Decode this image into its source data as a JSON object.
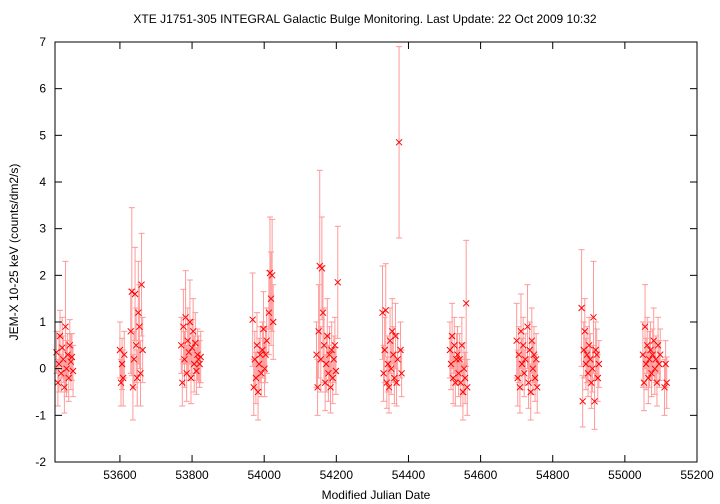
{
  "chart_data": {
    "type": "scatter",
    "title": "XTE J1751-305   INTEGRAL Galactic Bulge Monitoring.  Last Update: 22 Oct 2009 10:32",
    "xlabel": "Modified Julian Date",
    "ylabel": "JEM-X 10-25 keV (counts/dm2/s)",
    "xlim": [
      53420,
      55200
    ],
    "ylim": [
      -2,
      7
    ],
    "xticks": [
      53600,
      53800,
      54000,
      54200,
      54400,
      54600,
      54800,
      55000,
      55200
    ],
    "yticks": [
      -2,
      -1,
      0,
      1,
      2,
      3,
      4,
      5,
      6,
      7
    ],
    "grid": false,
    "legend": "none",
    "colors": {
      "series": "#ff0000",
      "errorbar": "#ff9999",
      "axis": "#000000"
    },
    "series": [
      {
        "marker": "x",
        "points": [
          {
            "x": 53424,
            "y": 0.35,
            "err": 0.45
          },
          {
            "x": 53428,
            "y": -0.3,
            "err": 0.5
          },
          {
            "x": 53431,
            "y": 0.1,
            "err": 0.6
          },
          {
            "x": 53434,
            "y": 0.7,
            "err": 0.55
          },
          {
            "x": 53437,
            "y": -0.1,
            "err": 0.4
          },
          {
            "x": 53440,
            "y": 0.45,
            "err": 0.65
          },
          {
            "x": 53443,
            "y": 0.2,
            "err": 0.5
          },
          {
            "x": 53446,
            "y": -0.4,
            "err": 0.55
          },
          {
            "x": 53449,
            "y": 0.9,
            "err": 1.4
          },
          {
            "x": 53452,
            "y": 0.0,
            "err": 0.6
          },
          {
            "x": 53455,
            "y": 0.3,
            "err": 0.45
          },
          {
            "x": 53458,
            "y": -0.2,
            "err": 0.5
          },
          {
            "x": 53461,
            "y": 0.5,
            "err": 0.55
          },
          {
            "x": 53464,
            "y": 0.15,
            "err": 0.6
          },
          {
            "x": 53467,
            "y": 0.25,
            "err": 0.5
          },
          {
            "x": 53470,
            "y": -0.05,
            "err": 0.55
          },
          {
            "x": 53600,
            "y": 0.4,
            "err": 0.6
          },
          {
            "x": 53603,
            "y": -0.3,
            "err": 0.5
          },
          {
            "x": 53606,
            "y": 0.1,
            "err": 0.55
          },
          {
            "x": 53609,
            "y": -0.2,
            "err": 0.6
          },
          {
            "x": 53612,
            "y": 0.3,
            "err": 0.5
          },
          {
            "x": 53630,
            "y": 0.8,
            "err": 0.9
          },
          {
            "x": 53633,
            "y": 1.65,
            "err": 1.8
          },
          {
            "x": 53636,
            "y": -0.4,
            "err": 0.7
          },
          {
            "x": 53639,
            "y": 0.2,
            "err": 0.6
          },
          {
            "x": 53642,
            "y": 1.6,
            "err": 1.0
          },
          {
            "x": 53645,
            "y": 0.5,
            "err": 0.8
          },
          {
            "x": 53648,
            "y": -0.2,
            "err": 0.6
          },
          {
            "x": 53651,
            "y": 1.2,
            "err": 1.1
          },
          {
            "x": 53654,
            "y": 0.9,
            "err": 0.9
          },
          {
            "x": 53657,
            "y": -0.1,
            "err": 0.7
          },
          {
            "x": 53660,
            "y": 1.8,
            "err": 1.1
          },
          {
            "x": 53663,
            "y": 0.4,
            "err": 0.7
          },
          {
            "x": 53770,
            "y": 0.5,
            "err": 0.6
          },
          {
            "x": 53773,
            "y": -0.3,
            "err": 0.5
          },
          {
            "x": 53776,
            "y": 0.9,
            "err": 0.8
          },
          {
            "x": 53779,
            "y": 0.2,
            "err": 0.6
          },
          {
            "x": 53782,
            "y": 1.1,
            "err": 1.0
          },
          {
            "x": 53785,
            "y": -0.1,
            "err": 0.6
          },
          {
            "x": 53788,
            "y": 0.6,
            "err": 0.7
          },
          {
            "x": 53791,
            "y": 0.35,
            "err": 0.6
          },
          {
            "x": 53794,
            "y": 1.0,
            "err": 0.9
          },
          {
            "x": 53797,
            "y": -0.2,
            "err": 0.55
          },
          {
            "x": 53800,
            "y": 0.45,
            "err": 0.6
          },
          {
            "x": 53803,
            "y": 0.8,
            "err": 0.7
          },
          {
            "x": 53806,
            "y": 0.1,
            "err": 0.6
          },
          {
            "x": 53809,
            "y": 0.55,
            "err": 0.65
          },
          {
            "x": 53812,
            "y": -0.05,
            "err": 0.5
          },
          {
            "x": 53815,
            "y": 0.3,
            "err": 0.55
          },
          {
            "x": 53818,
            "y": 0.2,
            "err": 0.5
          },
          {
            "x": 53821,
            "y": 0.1,
            "err": 0.5
          },
          {
            "x": 53824,
            "y": 0.25,
            "err": 0.55
          },
          {
            "x": 53968,
            "y": 1.05,
            "err": 1.0
          },
          {
            "x": 53971,
            "y": -0.4,
            "err": 0.6
          },
          {
            "x": 53974,
            "y": 0.2,
            "err": 0.6
          },
          {
            "x": 53977,
            "y": -0.2,
            "err": 0.55
          },
          {
            "x": 53980,
            "y": 0.5,
            "err": 0.7
          },
          {
            "x": 53983,
            "y": -0.5,
            "err": 0.6
          },
          {
            "x": 53986,
            "y": 0.1,
            "err": 0.55
          },
          {
            "x": 53989,
            "y": 0.3,
            "err": 0.6
          },
          {
            "x": 53992,
            "y": -0.1,
            "err": 0.5
          },
          {
            "x": 53995,
            "y": 0.4,
            "err": 0.6
          },
          {
            "x": 53998,
            "y": 0.85,
            "err": 0.8
          },
          {
            "x": 54001,
            "y": 0.0,
            "err": 0.6
          },
          {
            "x": 54004,
            "y": 0.3,
            "err": 0.6
          },
          {
            "x": 54007,
            "y": 0.6,
            "err": 0.7
          },
          {
            "x": 54013,
            "y": 1.2,
            "err": 0.9
          },
          {
            "x": 54016,
            "y": 2.05,
            "err": 1.2
          },
          {
            "x": 54019,
            "y": 1.5,
            "err": 1.0
          },
          {
            "x": 54022,
            "y": 2.0,
            "err": 1.2
          },
          {
            "x": 54025,
            "y": 1.0,
            "err": 0.8
          },
          {
            "x": 54145,
            "y": 0.3,
            "err": 0.7
          },
          {
            "x": 54148,
            "y": -0.4,
            "err": 0.6
          },
          {
            "x": 54151,
            "y": 0.8,
            "err": 1.0
          },
          {
            "x": 54154,
            "y": 2.2,
            "err": 2.05
          },
          {
            "x": 54157,
            "y": 0.2,
            "err": 0.7
          },
          {
            "x": 54160,
            "y": 2.15,
            "err": 1.1
          },
          {
            "x": 54163,
            "y": 1.2,
            "err": 1.0
          },
          {
            "x": 54166,
            "y": 0.5,
            "err": 0.8
          },
          {
            "x": 54169,
            "y": -0.3,
            "err": 0.6
          },
          {
            "x": 54172,
            "y": 0.1,
            "err": 0.6
          },
          {
            "x": 54175,
            "y": 0.7,
            "err": 0.8
          },
          {
            "x": 54178,
            "y": -0.1,
            "err": 0.6
          },
          {
            "x": 54181,
            "y": 0.3,
            "err": 0.6
          },
          {
            "x": 54184,
            "y": -0.4,
            "err": 0.55
          },
          {
            "x": 54187,
            "y": 0.4,
            "err": 0.6
          },
          {
            "x": 54190,
            "y": -0.2,
            "err": 0.55
          },
          {
            "x": 54193,
            "y": 0.2,
            "err": 0.5
          },
          {
            "x": 54196,
            "y": 0.5,
            "err": 0.6
          },
          {
            "x": 54199,
            "y": -0.05,
            "err": 0.5
          },
          {
            "x": 54204,
            "y": 1.85,
            "err": 1.2
          },
          {
            "x": 54328,
            "y": 1.2,
            "err": 1.0
          },
          {
            "x": 54331,
            "y": -0.1,
            "err": 0.6
          },
          {
            "x": 54334,
            "y": 0.4,
            "err": 0.7
          },
          {
            "x": 54337,
            "y": 1.25,
            "err": 1.0
          },
          {
            "x": 54340,
            "y": -0.3,
            "err": 0.55
          },
          {
            "x": 54343,
            "y": 0.1,
            "err": 0.6
          },
          {
            "x": 54346,
            "y": -0.4,
            "err": 0.55
          },
          {
            "x": 54349,
            "y": 0.6,
            "err": 0.7
          },
          {
            "x": 54352,
            "y": 0.0,
            "err": 0.55
          },
          {
            "x": 54355,
            "y": 0.8,
            "err": 0.7
          },
          {
            "x": 54358,
            "y": 0.3,
            "err": 0.6
          },
          {
            "x": 54361,
            "y": -0.2,
            "err": 0.55
          },
          {
            "x": 54364,
            "y": 0.7,
            "err": 0.7
          },
          {
            "x": 54367,
            "y": -0.3,
            "err": 0.5
          },
          {
            "x": 54370,
            "y": 0.2,
            "err": 0.55
          },
          {
            "x": 54374,
            "y": 4.85,
            "err": 2.05
          },
          {
            "x": 54378,
            "y": 0.4,
            "err": 0.6
          },
          {
            "x": 54381,
            "y": -0.1,
            "err": 0.5
          },
          {
            "x": 54515,
            "y": 0.4,
            "err": 0.6
          },
          {
            "x": 54518,
            "y": 0.1,
            "err": 0.55
          },
          {
            "x": 54521,
            "y": 0.7,
            "err": 0.7
          },
          {
            "x": 54524,
            "y": -0.2,
            "err": 0.55
          },
          {
            "x": 54527,
            "y": 0.5,
            "err": 0.6
          },
          {
            "x": 54530,
            "y": -0.3,
            "err": 0.5
          },
          {
            "x": 54533,
            "y": 0.2,
            "err": 0.55
          },
          {
            "x": 54536,
            "y": 0.3,
            "err": 0.6
          },
          {
            "x": 54539,
            "y": -0.1,
            "err": 0.5
          },
          {
            "x": 54542,
            "y": 0.2,
            "err": 0.55
          },
          {
            "x": 54545,
            "y": -0.3,
            "err": 0.5
          },
          {
            "x": 54548,
            "y": 0.5,
            "err": 0.6
          },
          {
            "x": 54551,
            "y": -0.5,
            "err": 0.6
          },
          {
            "x": 54554,
            "y": 0.0,
            "err": 0.55
          },
          {
            "x": 54557,
            "y": -0.2,
            "err": 0.55
          },
          {
            "x": 54560,
            "y": 1.4,
            "err": 1.35
          },
          {
            "x": 54563,
            "y": -0.4,
            "err": 0.6
          },
          {
            "x": 54700,
            "y": 0.6,
            "err": 0.8
          },
          {
            "x": 54703,
            "y": -0.2,
            "err": 0.6
          },
          {
            "x": 54706,
            "y": 0.3,
            "err": 0.6
          },
          {
            "x": 54709,
            "y": -0.4,
            "err": 0.55
          },
          {
            "x": 54712,
            "y": 0.8,
            "err": 0.8
          },
          {
            "x": 54715,
            "y": 0.1,
            "err": 0.55
          },
          {
            "x": 54718,
            "y": 0.5,
            "err": 0.6
          },
          {
            "x": 54721,
            "y": -0.1,
            "err": 0.5
          },
          {
            "x": 54724,
            "y": 0.2,
            "err": 0.55
          },
          {
            "x": 54730,
            "y": 0.9,
            "err": 0.9
          },
          {
            "x": 54733,
            "y": -0.3,
            "err": 0.55
          },
          {
            "x": 54736,
            "y": 0.4,
            "err": 0.6
          },
          {
            "x": 54739,
            "y": -0.5,
            "err": 0.6
          },
          {
            "x": 54742,
            "y": 0.6,
            "err": 0.7
          },
          {
            "x": 54745,
            "y": 0.0,
            "err": 0.55
          },
          {
            "x": 54748,
            "y": 0.3,
            "err": 0.6
          },
          {
            "x": 54751,
            "y": -0.2,
            "err": 0.5
          },
          {
            "x": 54754,
            "y": 0.2,
            "err": 0.55
          },
          {
            "x": 54757,
            "y": -0.4,
            "err": 0.55
          },
          {
            "x": 54880,
            "y": 1.3,
            "err": 1.25
          },
          {
            "x": 54883,
            "y": -0.7,
            "err": 0.55
          },
          {
            "x": 54886,
            "y": 0.4,
            "err": 0.6
          },
          {
            "x": 54889,
            "y": 0.8,
            "err": 0.7
          },
          {
            "x": 54892,
            "y": 0.1,
            "err": 0.55
          },
          {
            "x": 54895,
            "y": 0.3,
            "err": 0.6
          },
          {
            "x": 54898,
            "y": -0.1,
            "err": 0.5
          },
          {
            "x": 54901,
            "y": 0.5,
            "err": 0.6
          },
          {
            "x": 54904,
            "y": 0.2,
            "err": 0.55
          },
          {
            "x": 54907,
            "y": -0.3,
            "err": 0.55
          },
          {
            "x": 54910,
            "y": 0.0,
            "err": 0.5
          },
          {
            "x": 54913,
            "y": 1.1,
            "err": 1.2
          },
          {
            "x": 54916,
            "y": -0.7,
            "err": 0.6
          },
          {
            "x": 54919,
            "y": 0.4,
            "err": 0.6
          },
          {
            "x": 54922,
            "y": 0.3,
            "err": 0.55
          },
          {
            "x": 54925,
            "y": -0.2,
            "err": 0.5
          },
          {
            "x": 54928,
            "y": 0.1,
            "err": 0.5
          },
          {
            "x": 55050,
            "y": 0.3,
            "err": 0.7
          },
          {
            "x": 55053,
            "y": -0.3,
            "err": 0.6
          },
          {
            "x": 55056,
            "y": 0.9,
            "err": 0.9
          },
          {
            "x": 55059,
            "y": 0.1,
            "err": 0.55
          },
          {
            "x": 55062,
            "y": 0.5,
            "err": 0.6
          },
          {
            "x": 55065,
            "y": -0.2,
            "err": 0.55
          },
          {
            "x": 55068,
            "y": 0.2,
            "err": 0.6
          },
          {
            "x": 55071,
            "y": 0.4,
            "err": 0.6
          },
          {
            "x": 55074,
            "y": -0.1,
            "err": 0.5
          },
          {
            "x": 55077,
            "y": 0.3,
            "err": 0.55
          },
          {
            "x": 55080,
            "y": 0.6,
            "err": 0.7
          },
          {
            "x": 55083,
            "y": 0.0,
            "err": 0.55
          },
          {
            "x": 55086,
            "y": 0.2,
            "err": 0.5
          },
          {
            "x": 55089,
            "y": -0.3,
            "err": 0.5
          },
          {
            "x": 55092,
            "y": 0.5,
            "err": 0.6
          },
          {
            "x": 55095,
            "y": 0.1,
            "err": 0.5
          },
          {
            "x": 55098,
            "y": 0.3,
            "err": 0.55
          },
          {
            "x": 55110,
            "y": -0.4,
            "err": 0.6
          },
          {
            "x": 55113,
            "y": 0.1,
            "err": 0.5
          },
          {
            "x": 55116,
            "y": -0.3,
            "err": 0.55
          }
        ]
      }
    ]
  }
}
